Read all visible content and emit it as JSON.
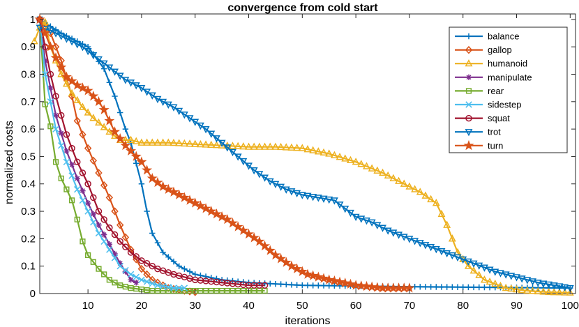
{
  "chart_data": {
    "type": "line",
    "title": "convergence from cold start",
    "xlabel": "iterations",
    "ylabel": "normalized costs",
    "xlim": [
      1,
      101
    ],
    "ylim": [
      0,
      1.02
    ],
    "xticks": [
      10,
      20,
      30,
      40,
      50,
      60,
      70,
      80,
      90,
      100
    ],
    "yticks": [
      0,
      0.1,
      0.2,
      0.3,
      0.4,
      0.5,
      0.6,
      0.7,
      0.8,
      0.9,
      1
    ],
    "ytick_labels": [
      "0",
      "0.1",
      "0.2",
      "0.3",
      "0.4",
      "0.5",
      "0.6",
      "0.7",
      "0.8",
      "0.9",
      "1"
    ],
    "legend_position": "top-right",
    "grid": false,
    "series": [
      {
        "name": "balance",
        "color": "#0072BD",
        "marker": "plus",
        "points": [
          [
            1,
            1
          ],
          [
            5,
            0.95
          ],
          [
            10,
            0.9
          ],
          [
            13,
            0.82
          ],
          [
            15,
            0.72
          ],
          [
            17,
            0.6
          ],
          [
            18,
            0.55
          ],
          [
            20,
            0.4
          ],
          [
            21,
            0.3
          ],
          [
            22,
            0.22
          ],
          [
            24,
            0.15
          ],
          [
            27,
            0.1
          ],
          [
            30,
            0.07
          ],
          [
            35,
            0.05
          ],
          [
            40,
            0.04
          ],
          [
            50,
            0.03
          ],
          [
            70,
            0.025
          ],
          [
            100,
            0.02
          ]
        ]
      },
      {
        "name": "gallop",
        "color": "#D95319",
        "marker": "diamond",
        "points": [
          [
            1,
            1
          ],
          [
            3,
            0.95
          ],
          [
            5,
            0.85
          ],
          [
            7,
            0.72
          ],
          [
            8,
            0.63
          ],
          [
            10,
            0.53
          ],
          [
            12,
            0.44
          ],
          [
            14,
            0.35
          ],
          [
            16,
            0.25
          ],
          [
            18,
            0.16
          ],
          [
            20,
            0.09
          ],
          [
            22,
            0.05
          ],
          [
            25,
            0.02
          ],
          [
            28,
            0.01
          ],
          [
            30,
            0.005
          ]
        ]
      },
      {
        "name": "humanoid",
        "color": "#EDB120",
        "marker": "triangle-up",
        "points": [
          [
            0,
            0.92
          ],
          [
            1,
            0.97
          ],
          [
            2,
            0.99
          ],
          [
            3,
            0.9
          ],
          [
            5,
            0.8
          ],
          [
            7,
            0.73
          ],
          [
            9,
            0.68
          ],
          [
            11,
            0.64
          ],
          [
            14,
            0.59
          ],
          [
            16,
            0.56
          ],
          [
            18,
            0.56
          ],
          [
            20,
            0.55
          ],
          [
            25,
            0.55
          ],
          [
            30,
            0.545
          ],
          [
            35,
            0.54
          ],
          [
            40,
            0.535
          ],
          [
            45,
            0.535
          ],
          [
            50,
            0.53
          ],
          [
            55,
            0.51
          ],
          [
            60,
            0.48
          ],
          [
            65,
            0.44
          ],
          [
            70,
            0.39
          ],
          [
            72,
            0.37
          ],
          [
            75,
            0.33
          ],
          [
            77,
            0.25
          ],
          [
            79,
            0.15
          ],
          [
            81,
            0.1
          ],
          [
            84,
            0.05
          ],
          [
            88,
            0.02
          ],
          [
            92,
            0.01
          ],
          [
            96,
            0.005
          ],
          [
            100,
            0.003
          ]
        ]
      },
      {
        "name": "manipulate",
        "color": "#7E2F8E",
        "marker": "asterisk",
        "points": [
          [
            1,
            1
          ],
          [
            2,
            0.85
          ],
          [
            4,
            0.65
          ],
          [
            6,
            0.52
          ],
          [
            8,
            0.42
          ],
          [
            10,
            0.33
          ],
          [
            12,
            0.25
          ],
          [
            14,
            0.18
          ],
          [
            16,
            0.11
          ],
          [
            18,
            0.05
          ],
          [
            19,
            0.04
          ]
        ]
      },
      {
        "name": "rear",
        "color": "#77AC30",
        "marker": "square",
        "points": [
          [
            1,
            1
          ],
          [
            2,
            0.69
          ],
          [
            3,
            0.61
          ],
          [
            4,
            0.48
          ],
          [
            5,
            0.42
          ],
          [
            6,
            0.38
          ],
          [
            7,
            0.34
          ],
          [
            8,
            0.27
          ],
          [
            9,
            0.19
          ],
          [
            10,
            0.14
          ],
          [
            12,
            0.09
          ],
          [
            14,
            0.05
          ],
          [
            16,
            0.03
          ],
          [
            18,
            0.02
          ],
          [
            22,
            0.01
          ],
          [
            26,
            0.01
          ],
          [
            30,
            0.01
          ],
          [
            35,
            0.01
          ],
          [
            40,
            0.01
          ],
          [
            43,
            0.01
          ]
        ]
      },
      {
        "name": "sidestep",
        "color": "#4DBEEE",
        "marker": "cross",
        "points": [
          [
            1,
            1
          ],
          [
            2,
            0.8
          ],
          [
            4,
            0.6
          ],
          [
            6,
            0.48
          ],
          [
            8,
            0.38
          ],
          [
            10,
            0.3
          ],
          [
            12,
            0.22
          ],
          [
            14,
            0.16
          ],
          [
            16,
            0.1
          ],
          [
            18,
            0.07
          ],
          [
            20,
            0.05
          ],
          [
            23,
            0.03
          ],
          [
            26,
            0.02
          ],
          [
            28,
            0.02
          ]
        ]
      },
      {
        "name": "squat",
        "color": "#A2142F",
        "marker": "circle",
        "points": [
          [
            1,
            1
          ],
          [
            2,
            0.9
          ],
          [
            3,
            0.8
          ],
          [
            4,
            0.72
          ],
          [
            5,
            0.65
          ],
          [
            6,
            0.58
          ],
          [
            8,
            0.48
          ],
          [
            10,
            0.4
          ],
          [
            12,
            0.3
          ],
          [
            14,
            0.24
          ],
          [
            16,
            0.19
          ],
          [
            18,
            0.15
          ],
          [
            20,
            0.12
          ],
          [
            23,
            0.09
          ],
          [
            26,
            0.07
          ],
          [
            30,
            0.05
          ],
          [
            35,
            0.04
          ],
          [
            40,
            0.03
          ],
          [
            43,
            0.03
          ]
        ]
      },
      {
        "name": "trot",
        "color": "#0072BD",
        "marker": "triangle-down",
        "points": [
          [
            1,
            0.97
          ],
          [
            3,
            0.96
          ],
          [
            5,
            0.94
          ],
          [
            7,
            0.92
          ],
          [
            9,
            0.9
          ],
          [
            11,
            0.87
          ],
          [
            13,
            0.84
          ],
          [
            15,
            0.81
          ],
          [
            17,
            0.78
          ],
          [
            20,
            0.75
          ],
          [
            23,
            0.71
          ],
          [
            26,
            0.68
          ],
          [
            29,
            0.64
          ],
          [
            32,
            0.6
          ],
          [
            35,
            0.55
          ],
          [
            38,
            0.5
          ],
          [
            41,
            0.45
          ],
          [
            44,
            0.41
          ],
          [
            47,
            0.38
          ],
          [
            50,
            0.36
          ],
          [
            53,
            0.35
          ],
          [
            56,
            0.34
          ],
          [
            58,
            0.31
          ],
          [
            60,
            0.28
          ],
          [
            63,
            0.26
          ],
          [
            66,
            0.23
          ],
          [
            70,
            0.2
          ],
          [
            74,
            0.17
          ],
          [
            78,
            0.14
          ],
          [
            82,
            0.11
          ],
          [
            86,
            0.08
          ],
          [
            90,
            0.06
          ],
          [
            94,
            0.04
          ],
          [
            97,
            0.03
          ],
          [
            100,
            0.02
          ]
        ]
      },
      {
        "name": "turn",
        "color": "#D95319",
        "marker": "star",
        "points": [
          [
            1,
            1
          ],
          [
            2,
            0.95
          ],
          [
            3,
            0.9
          ],
          [
            4,
            0.86
          ],
          [
            6,
            0.79
          ],
          [
            8,
            0.76
          ],
          [
            10,
            0.74
          ],
          [
            12,
            0.7
          ],
          [
            13,
            0.67
          ],
          [
            15,
            0.59
          ],
          [
            17,
            0.54
          ],
          [
            20,
            0.48
          ],
          [
            22,
            0.42
          ],
          [
            24,
            0.39
          ],
          [
            27,
            0.36
          ],
          [
            30,
            0.33
          ],
          [
            33,
            0.3
          ],
          [
            36,
            0.27
          ],
          [
            39,
            0.23
          ],
          [
            42,
            0.19
          ],
          [
            45,
            0.14
          ],
          [
            48,
            0.1
          ],
          [
            51,
            0.07
          ],
          [
            55,
            0.05
          ],
          [
            60,
            0.03
          ],
          [
            65,
            0.02
          ],
          [
            70,
            0.02
          ]
        ]
      }
    ]
  }
}
